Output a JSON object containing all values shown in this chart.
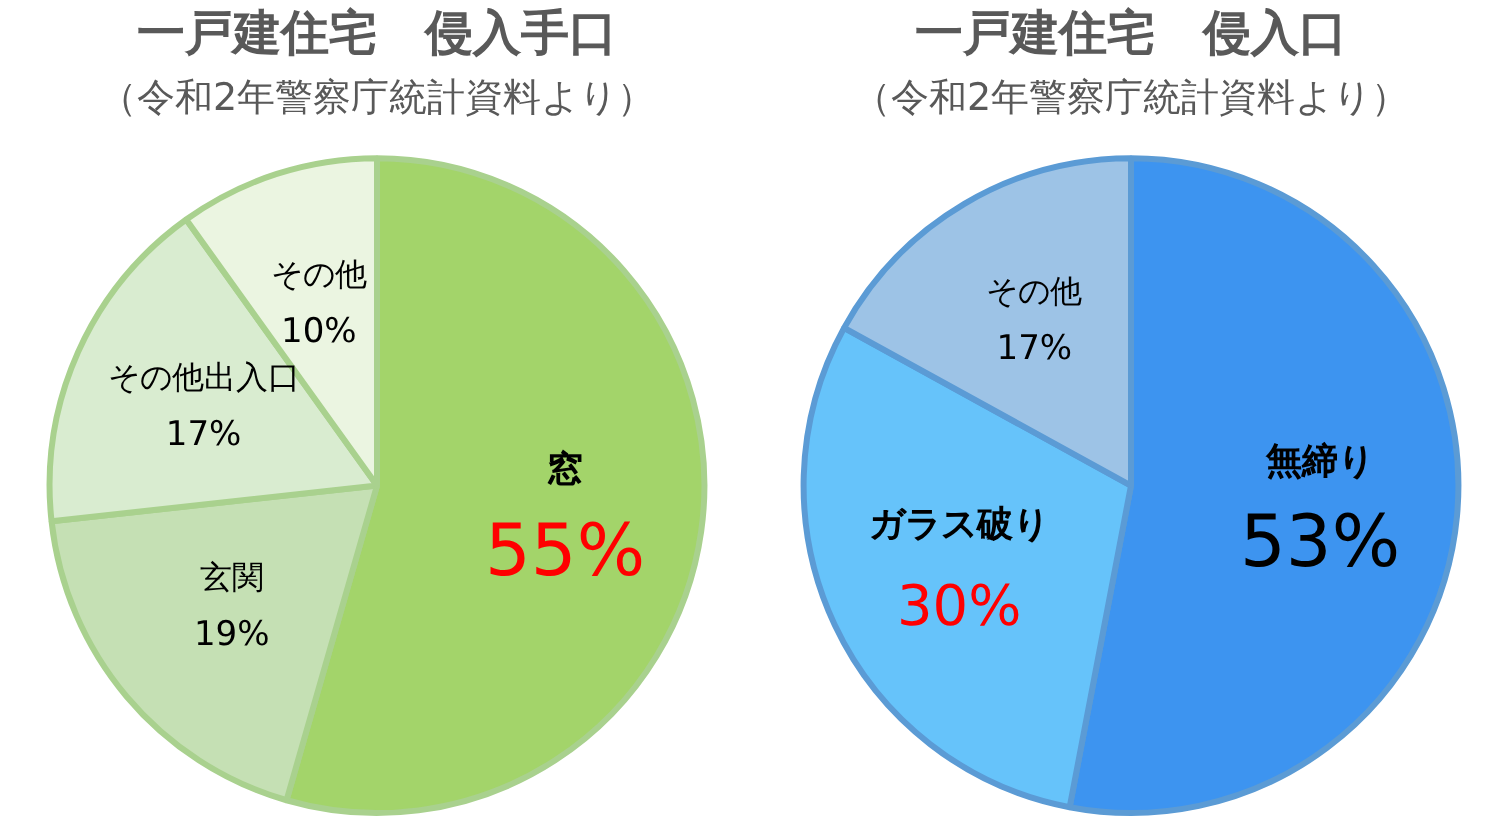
{
  "chart_data": [
    {
      "type": "pie",
      "title": "一戸建住宅　侵入手口",
      "subtitle": "（令和2年警察庁統計資料より）",
      "categories": [
        "窓",
        "玄関",
        "その他出入口",
        "その他"
      ],
      "values": [
        55,
        19,
        17,
        10
      ],
      "colors": [
        "#a3d46a",
        "#c5e0b4",
        "#d9ecd0",
        "#ebf5e1"
      ],
      "value_labels": [
        "55%",
        "19%",
        "17%",
        "10%"
      ],
      "legend": false
    },
    {
      "type": "pie",
      "title": "一戸建住宅　侵入口",
      "subtitle": "（令和2年警察庁統計資料より）",
      "categories": [
        "無締り",
        "ガラス破り",
        "その他"
      ],
      "values": [
        53,
        30,
        17
      ],
      "colors": [
        "#3d94f0",
        "#66c3fa",
        "#9dc3e6"
      ],
      "value_labels": [
        "53%",
        "30%",
        "17%"
      ],
      "legend": false
    }
  ]
}
